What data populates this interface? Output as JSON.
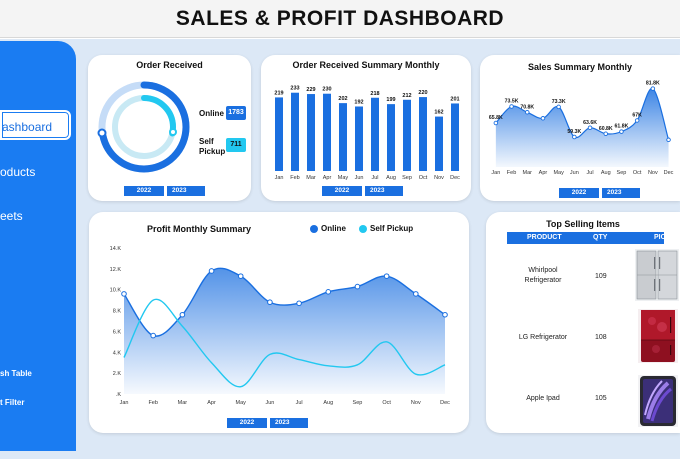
{
  "header": {
    "title": "SALES & PROFIT DASHBOARD"
  },
  "sidebar": {
    "items": [
      {
        "label": "ashboard",
        "active": true
      },
      {
        "label": "oducts",
        "active": false
      },
      {
        "label": "eets",
        "active": false
      }
    ],
    "bottom_items": [
      "sh Table",
      "t Filter"
    ]
  },
  "order_received": {
    "title": "Order Received",
    "online_label": "Online",
    "online_value": "1783",
    "pickup_label": "Self\nPickup",
    "pickup_label_1": "Self",
    "pickup_label_2": "Pickup",
    "pickup_value": "711",
    "colors": {
      "online": "#1a6fe0",
      "pickup": "#22c8f0"
    },
    "years": [
      "2022",
      "2023"
    ]
  },
  "summary_monthly": {
    "title": "Order Received Summary Monthly",
    "years": [
      "2022",
      "2023"
    ]
  },
  "sales_summary": {
    "title": "Sales Summary Monthly",
    "years": [
      "2022",
      "2023"
    ]
  },
  "profit_summary": {
    "title": "Profit Monthly Summary",
    "legend": [
      "Online",
      "Self Pickup"
    ],
    "years": [
      "2022",
      "2023"
    ]
  },
  "top_selling": {
    "title": "Top Selling Items",
    "columns": [
      "PRODUCT",
      "QTY",
      "PIC"
    ],
    "rows": [
      {
        "product_1": "Whirlpool",
        "product_2": "Refrigerator",
        "qty": "109",
        "pic": "fridge-silver-icon"
      },
      {
        "product_1": "LG Refrigerator",
        "product_2": "",
        "qty": "108",
        "pic": "fridge-red-icon"
      },
      {
        "product_1": "Apple Ipad",
        "product_2": "",
        "qty": "105",
        "pic": "tablet-icon"
      }
    ]
  },
  "chart_data": [
    {
      "type": "bar",
      "title": "Order Received Summary Monthly",
      "categories": [
        "Jan",
        "Feb",
        "Mar",
        "Apr",
        "May",
        "Jun",
        "Jul",
        "Aug",
        "Sep",
        "Oct",
        "Nov",
        "Dec"
      ],
      "values": [
        219,
        233,
        229,
        230,
        202,
        192,
        218,
        199,
        212,
        220,
        162,
        201
      ],
      "ylim": [
        0,
        250
      ],
      "color": "#1a6fe0"
    },
    {
      "type": "area",
      "title": "Sales Summary Monthly",
      "categories": [
        "Jan",
        "Feb",
        "Mar",
        "Apr",
        "May",
        "Jun",
        "Jul",
        "Aug",
        "Sep",
        "Oct",
        "Nov",
        "Dec"
      ],
      "values": [
        65.8,
        73.5,
        70.8,
        68,
        73.3,
        59.3,
        63.6,
        60.8,
        61.8,
        67,
        81.8,
        58
      ],
      "labels": [
        "65.8K",
        "73.5K",
        "70.8K",
        "",
        "73.3K",
        "59.3K",
        "63.6K",
        "60.8K",
        "61.8K",
        "67K",
        "81.8K",
        ""
      ],
      "ylim": [
        50,
        90
      ],
      "color": "#1a6fe0"
    },
    {
      "type": "line",
      "title": "Profit Monthly Summary",
      "categories": [
        "Jan",
        "Feb",
        "Mar",
        "Apr",
        "May",
        "Jun",
        "Jul",
        "Aug",
        "Sep",
        "Oct",
        "Nov",
        "Dec"
      ],
      "yticks": [
        ".K",
        "2.K",
        "4.K",
        "6.K",
        "8.K",
        "10.K",
        "12.K",
        "14.K"
      ],
      "ylim": [
        0,
        14
      ],
      "series": [
        {
          "name": "Online",
          "values": [
            9.6,
            5.6,
            7.6,
            11.8,
            11.3,
            8.8,
            8.7,
            9.8,
            10.3,
            11.3,
            9.6,
            7.6
          ],
          "color": "#1a6fe0"
        },
        {
          "name": "Self Pickup",
          "values": [
            3.5,
            9.0,
            6.5,
            3.0,
            0.7,
            3.8,
            3.3,
            2.7,
            2.8,
            5.0,
            1.9,
            2.8
          ],
          "color": "#22c8f0"
        }
      ]
    }
  ]
}
